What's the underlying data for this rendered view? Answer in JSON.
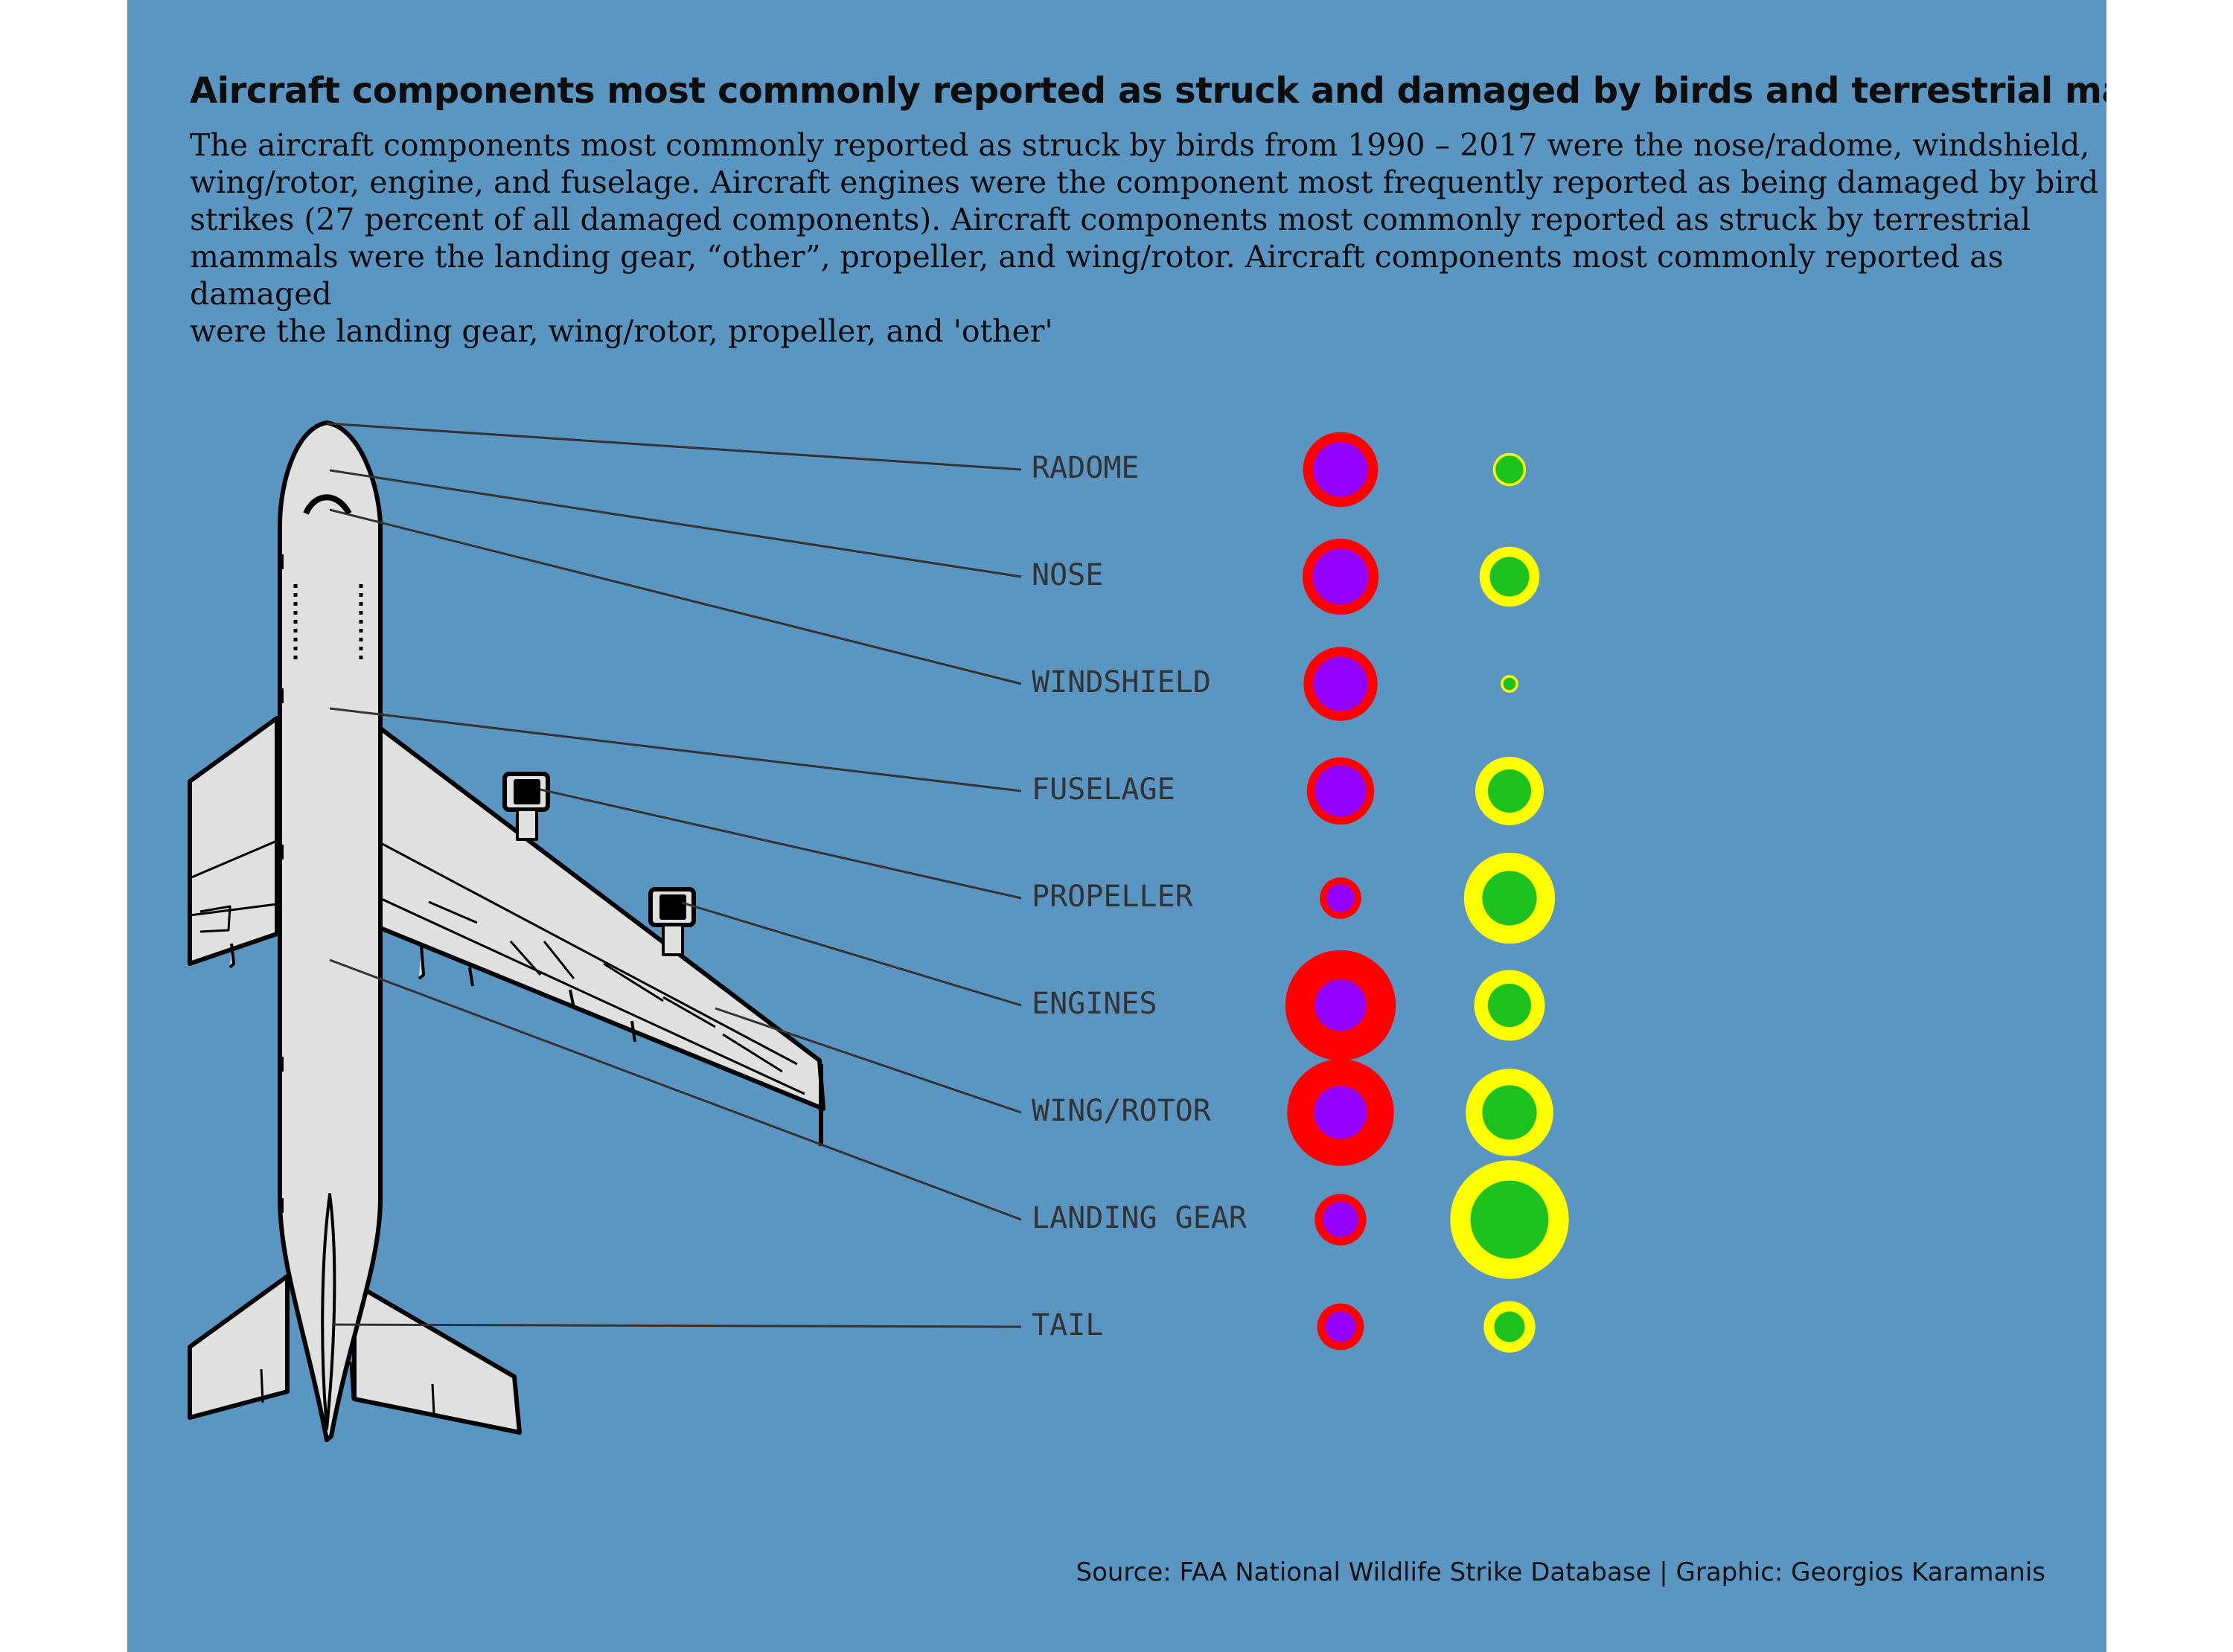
{
  "title": "Aircraft components most commonly reported as struck and damaged by birds and terrestrial mammals",
  "subtitle": "The aircraft components most commonly reported as struck by birds from 1990 – 2017 were the nose/radome, windshield,\nwing/rotor, engine, and fuselage. Aircraft engines were the component most frequently reported as being damaged by bird\nstrikes (27 percent of all damaged components). Aircraft components most commonly reported as struck by terrestrial\nmammals were the landing gear, “other”, propeller, and wing/rotor. Aircraft components most commonly reported as damaged\nwere the landing gear, wing/rotor, propeller, and 'other'",
  "source": "Source: FAA National Wildlife Strike Database | Graphic: Georgios Karamanis",
  "colors": {
    "background": "#5b96c3",
    "birds_struck": "#ff0000",
    "birds_damaged": "#9400ff",
    "mammals_struck": "#ffff00",
    "mammals_damaged": "#1ec21e",
    "leader_line": "#333333",
    "plane_fill": "#e0e0e0",
    "plane_outline": "#000000"
  },
  "chart_data": {
    "type": "bubble",
    "components": [
      "RADOME",
      "NOSE",
      "WINDSHIELD",
      "FUSELAGE",
      "PROPELLER",
      "ENGINES",
      "WING/ROTOR",
      "LANDING GEAR",
      "TAIL"
    ],
    "series": [
      {
        "values": [
          0.36,
          0.37,
          0.35,
          0.29,
          0.11,
          0.78,
          0.73,
          0.17,
          0.14
        ]
      },
      {
        "values": [
          0.19,
          0.2,
          0.19,
          0.17,
          0.05,
          0.17,
          0.18,
          0.08,
          0.06
        ]
      },
      {
        "values": [
          0.07,
          0.23,
          0.02,
          0.3,
          0.53,
          0.32,
          0.49,
          0.9,
          0.17
        ]
      },
      {
        "values": [
          0.05,
          0.1,
          0.01,
          0.12,
          0.19,
          0.12,
          0.19,
          0.39,
          0.06
        ]
      }
    ]
  }
}
